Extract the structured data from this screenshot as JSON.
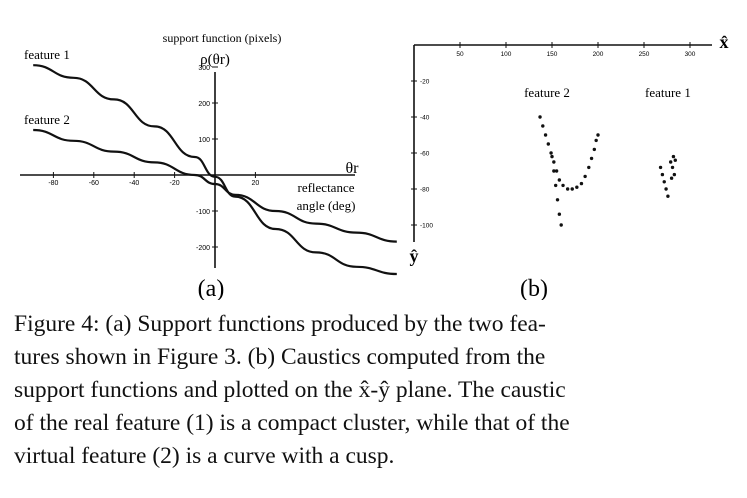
{
  "figure_number": "Figure 4",
  "panel_a": {
    "label": "(a)",
    "title": "support function (pixels)",
    "y_symbol": "ρ(θr)",
    "x_symbol": "θr",
    "x_name_line1": "reflectance",
    "x_name_line2": "angle (deg)",
    "x_ticks": [
      "-80",
      "-60",
      "-40",
      "-20",
      "20"
    ],
    "y_ticks": [
      "300",
      "200",
      "100",
      "-100",
      "-200"
    ],
    "series": [
      {
        "name": "feature 1",
        "x": [
          -90,
          -70,
          -50,
          -30,
          -10,
          0,
          10,
          30,
          50,
          70,
          90
        ],
        "y": [
          305,
          270,
          210,
          135,
          50,
          -5,
          -60,
          -150,
          -215,
          -255,
          -275
        ]
      },
      {
        "name": "feature 2",
        "x": [
          -90,
          -70,
          -50,
          -30,
          -10,
          0,
          10,
          30,
          50,
          70,
          90
        ],
        "y": [
          125,
          95,
          65,
          35,
          0,
          -25,
          -55,
          -100,
          -135,
          -160,
          -185
        ]
      }
    ]
  },
  "panel_b": {
    "label": "(b)",
    "x_symbol": "x̂",
    "y_symbol": "ŷ",
    "x_ticks": [
      "50",
      "100",
      "150",
      "200",
      "250",
      "300"
    ],
    "y_ticks": [
      "-20",
      "-40",
      "-60",
      "-80",
      "-100"
    ],
    "series": [
      {
        "name": "feature 2",
        "points": [
          [
            137,
            -40
          ],
          [
            140,
            -45
          ],
          [
            143,
            -50
          ],
          [
            146,
            -55
          ],
          [
            149,
            -60
          ],
          [
            152,
            -65
          ],
          [
            155,
            -70
          ],
          [
            158,
            -75
          ],
          [
            162,
            -78
          ],
          [
            167,
            -80
          ],
          [
            172,
            -80
          ],
          [
            177,
            -79
          ],
          [
            182,
            -77
          ],
          [
            186,
            -73
          ],
          [
            190,
            -68
          ],
          [
            193,
            -63
          ],
          [
            196,
            -58
          ],
          [
            198,
            -53
          ],
          [
            200,
            -50
          ],
          [
            150,
            -62
          ],
          [
            152,
            -70
          ],
          [
            154,
            -78
          ],
          [
            156,
            -86
          ],
          [
            158,
            -94
          ],
          [
            160,
            -100
          ]
        ]
      },
      {
        "name": "feature 1",
        "points": [
          [
            268,
            -68
          ],
          [
            270,
            -72
          ],
          [
            272,
            -76
          ],
          [
            274,
            -80
          ],
          [
            276,
            -84
          ],
          [
            279,
            -65
          ],
          [
            281,
            -68
          ],
          [
            283,
            -72
          ],
          [
            282,
            -62
          ],
          [
            280,
            -74
          ],
          [
            284,
            -64
          ]
        ]
      }
    ]
  },
  "caption_lines": [
    "Figure 4: (a) Support functions produced by the two fea-",
    "tures shown in Figure 3. (b) Caustics computed from the",
    "support functions and plotted on the x̂-ŷ plane. The caustic",
    "of the real feature (1) is a compact cluster, while that of the",
    "virtual feature (2) is a curve with a cusp."
  ]
}
